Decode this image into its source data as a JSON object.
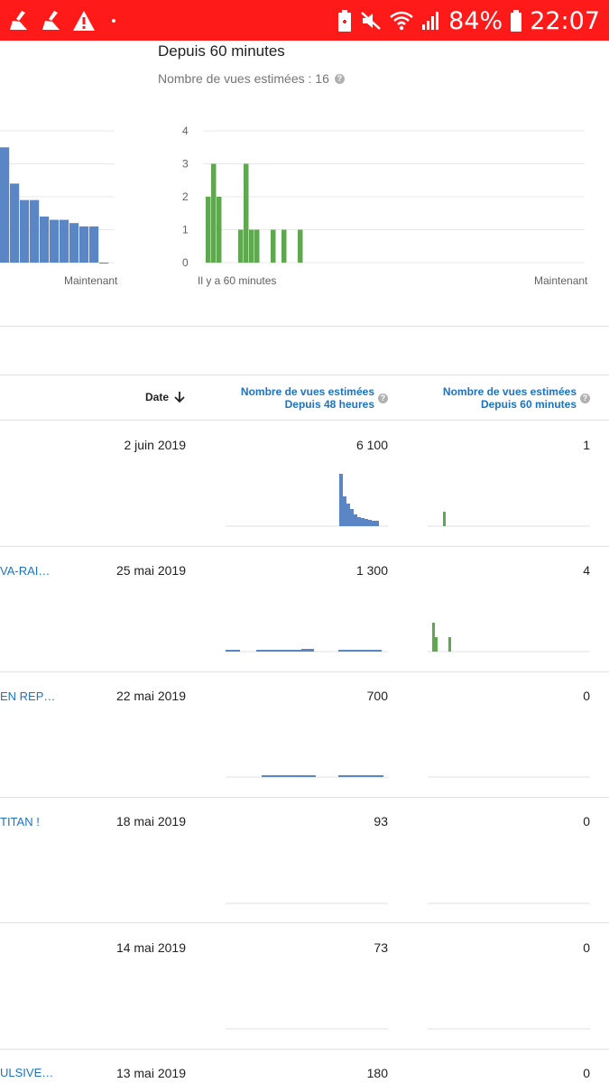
{
  "status_bar": {
    "battery": "84%",
    "time": "22:07",
    "colors": {
      "bg": "#ff1a1a"
    },
    "icons": [
      "broom-icon",
      "broom-icon",
      "warning-icon",
      "dot-icon",
      "battery-saver-icon",
      "mute-icon",
      "wifi-icon",
      "signal-icon",
      "battery-icon"
    ]
  },
  "realtime": {
    "title": "Depuis 60 minutes",
    "estimated_label": "Nombre de vues estimées : 16",
    "left_chart_label": "Maintenant",
    "right_chart": {
      "start_label": "Il y a 60 minutes",
      "end_label": "Maintenant"
    }
  },
  "chart_data": [
    {
      "type": "bar",
      "title": "",
      "values": [
        3.5,
        2.4,
        1.9,
        1.9,
        1.4,
        1.3,
        1.3,
        1.2,
        1.1,
        1.1,
        0.0
      ],
      "xlabel": "",
      "x_end_label": "Maintenant",
      "color": "#5a86c5"
    },
    {
      "type": "bar",
      "title": "",
      "yticks": [
        "0",
        "1",
        "2",
        "3",
        "4"
      ],
      "ylim": [
        0,
        4
      ],
      "x_labels": [
        "Il y a 60 minutes",
        "Maintenant"
      ],
      "values": [
        2,
        3,
        2,
        0,
        0,
        0,
        1,
        3,
        1,
        1,
        0,
        0,
        1,
        0,
        1,
        0,
        0,
        1
      ],
      "color": "#5fa84f"
    }
  ],
  "table": {
    "headers": {
      "date": "Date",
      "views48": [
        "Nombre de vues estimées",
        "Depuis 48 heures"
      ],
      "views60": [
        "Nombre de vues estimées",
        "Depuis 60 minutes"
      ]
    },
    "rows": [
      {
        "title": "",
        "date": "2 juin 2019",
        "views48": "6 100",
        "views60": "1"
      },
      {
        "title": "VA-RAI…",
        "date": "25 mai 2019",
        "views48": "1 300",
        "views60": "4"
      },
      {
        "title": "EN REP…",
        "date": "22 mai 2019",
        "views48": "700",
        "views60": "0"
      },
      {
        "title": "TITAN !",
        "date": "18 mai 2019",
        "views48": "93",
        "views60": "0"
      },
      {
        "title": "",
        "date": "14 mai 2019",
        "views48": "73",
        "views60": "0"
      },
      {
        "title": "ULSIVE…",
        "date": "13 mai 2019",
        "views48": "180",
        "views60": "0"
      }
    ]
  }
}
